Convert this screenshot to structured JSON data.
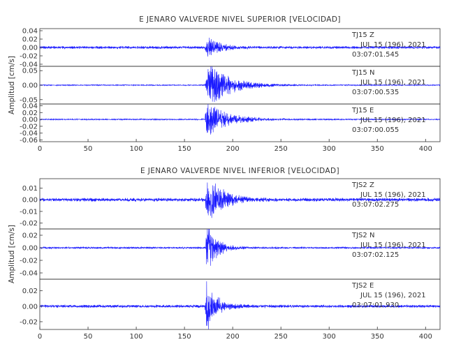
{
  "colors": {
    "trace": "#1a1aff",
    "frame": "#333333",
    "text": "#333333",
    "background": "#ffffff"
  },
  "chart_data": [
    {
      "type": "line",
      "title": "E JENARO VALVERDE NIVEL SUPERIOR [VELOCIDAD]",
      "ylabel": "Amplitud [cm/s]",
      "xlim": [
        0,
        415
      ],
      "x_ticks": [
        "0",
        "50",
        "100",
        "150",
        "200",
        "250",
        "300",
        "350",
        "400"
      ],
      "grid": false,
      "series": [
        {
          "name": "TJ15 Z",
          "station": "TJ15",
          "component": "Z",
          "date": "JUL 15 (196), 2021",
          "time": "03:07:01.545",
          "ylim": [
            -0.045,
            0.045
          ],
          "y_ticks": [
            "0.04",
            "0.02",
            "0.00",
            "-0.02",
            "-0.04"
          ],
          "onset_s": 171,
          "peak_amplitude": 0.02,
          "noise_amplitude": 0.0025,
          "decay_s": 12,
          "peak_time_s": 174
        },
        {
          "name": "TJ15 N",
          "station": "TJ15",
          "component": "N",
          "date": "JUL 15 (196), 2021",
          "time": "03:07:00.535",
          "ylim": [
            -0.065,
            0.065
          ],
          "y_ticks": [
            "0.05",
            "0.00",
            "-0.05"
          ],
          "onset_s": 171,
          "peak_amplitude": 0.06,
          "noise_amplitude": 0.0015,
          "decay_s": 22,
          "peak_time_s": 176
        },
        {
          "name": "TJ15 E",
          "station": "TJ15",
          "component": "E",
          "date": "JUL 15 (196), 2021",
          "time": "03:07:00.055",
          "ylim": [
            -0.065,
            0.045
          ],
          "y_ticks": [
            "0.04",
            "0.02",
            "0.00",
            "-0.02",
            "-0.04",
            "-0.06"
          ],
          "onset_s": 171,
          "peak_amplitude": 0.045,
          "noise_amplitude": 0.0015,
          "decay_s": 20,
          "peak_time_s": 173
        }
      ]
    },
    {
      "type": "line",
      "title": "E JENARO VALVERDE NIVEL INFERIOR [VELOCIDAD]",
      "ylabel": "Amplitud [cm/s]",
      "xlim": [
        0,
        415
      ],
      "x_ticks": [
        "0",
        "50",
        "100",
        "150",
        "200",
        "250",
        "300",
        "350",
        "400"
      ],
      "grid": false,
      "series": [
        {
          "name": "TJS2 Z",
          "station": "TJS2",
          "component": "Z",
          "date": "JUL 15 (196), 2021",
          "time": "03:07:02.275",
          "ylim": [
            -0.025,
            0.018
          ],
          "y_ticks": [
            "0.01",
            "0.00",
            "-0.01",
            "-0.02"
          ],
          "onset_s": 171,
          "peak_amplitude": 0.018,
          "noise_amplitude": 0.0012,
          "decay_s": 14,
          "peak_time_s": 175
        },
        {
          "name": "TJS2 N",
          "station": "TJS2",
          "component": "N",
          "date": "JUL 15 (196), 2021",
          "time": "03:07:02.125",
          "ylim": [
            -0.05,
            0.03
          ],
          "y_ticks": [
            "0.02",
            "0.00",
            "-0.02",
            "-0.04"
          ],
          "onset_s": 172,
          "peak_amplitude": 0.035,
          "noise_amplitude": 0.0012,
          "decay_s": 10,
          "peak_time_s": 173
        },
        {
          "name": "TJS2 E",
          "station": "TJS2",
          "component": "E",
          "date": "JUL 15 (196), 2021",
          "time": "03:07:01.930",
          "ylim": [
            -0.03,
            0.035
          ],
          "y_ticks": [
            "0.02",
            "0.00",
            "-0.02"
          ],
          "onset_s": 171,
          "peak_amplitude": 0.03,
          "noise_amplitude": 0.0015,
          "decay_s": 10,
          "peak_time_s": 173
        }
      ]
    }
  ]
}
